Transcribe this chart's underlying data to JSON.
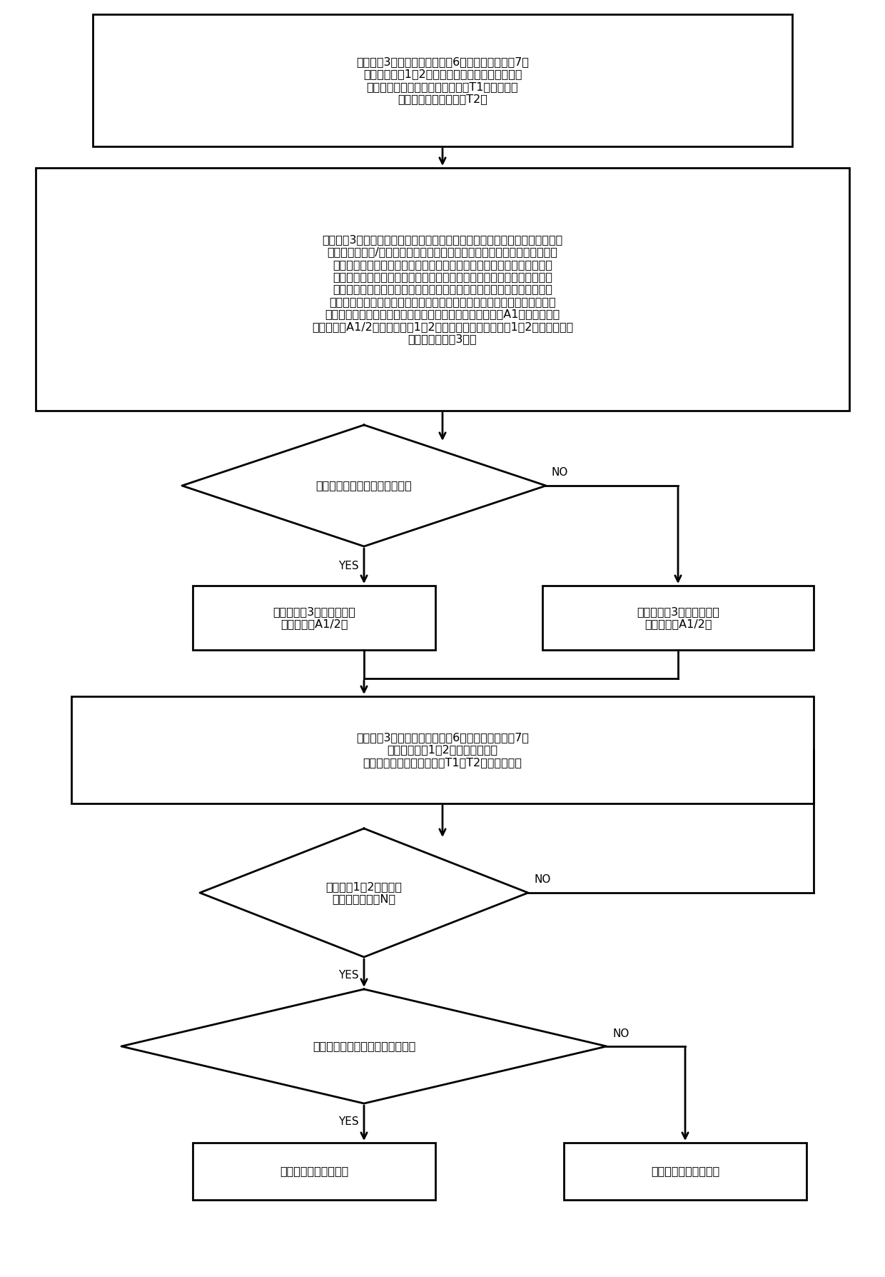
{
  "bg_color": "#ffffff",
  "line_color": "#000000",
  "text_color": "#000000",
  "box1_text": "由控制器3通过第一伺服驱动器6和第二伺服驱动器7，\n控制阴阳转子1、2其中之一静止，另一缓慢转动，\n设置动转子对应的伺服电机的扭矩T1小于静转子\n对应的伺服电机的扭矩T2；",
  "box2_text": "由控制器3控制动转子由初始位置分别沿逆时针方向和顺时针方向各转动一次，\n当该动转子沿逆/顺时针方向转动至与静转子的一侧相抵时，该动转子停止，\n动转子对应的伺服驱动器检测到两者相抵的触发信号，并由动转子对应的\n位置检测装置将该位置作为零点位置，然后该动转子沿相反方向转动至与\n静转子的另一侧相抵时，该动转子也停止，动转子对应的伺服驱动器再次\n检测到两者相抵的触发信号，并由动转子对应的位置检测装置获取该动转子\n由一侧相抵位置处转动至另一侧相抵位置处所需转动的角度A1，所需转动的\n角度的一半A1/2即为阴阳转子1、2的初始相位角，阴阳转子1、2的初始相位角\n还保存在控制器3中；",
  "diamond1_text": "动转子先逆时针后顺时针旋转？",
  "box3_yes_text": "则由控制器3控制该动转子\n逆时针旋转A1/2；",
  "box3_no_text": "则由控制器3控制该动转子\n顺时针旋转A1/2；",
  "box4_text": "由控制器3通过第一伺服驱动器6和第二伺服驱动器7，\n控制阴阳转子1、2缓慢同步转动，\n且设置两个伺服电机的扭矩T1、T2相同或接近；",
  "diamond2_text": "阴阳转子1、2是否同步\n转动到设定圈数N？",
  "diamond3_text": "是否接收到两者相抵的触发信号？",
  "box5_yes_text": "则判定机组工作异常。",
  "box5_no_text": "则判定机组工作正常。",
  "yes_label": "YES",
  "no_label": "NO"
}
